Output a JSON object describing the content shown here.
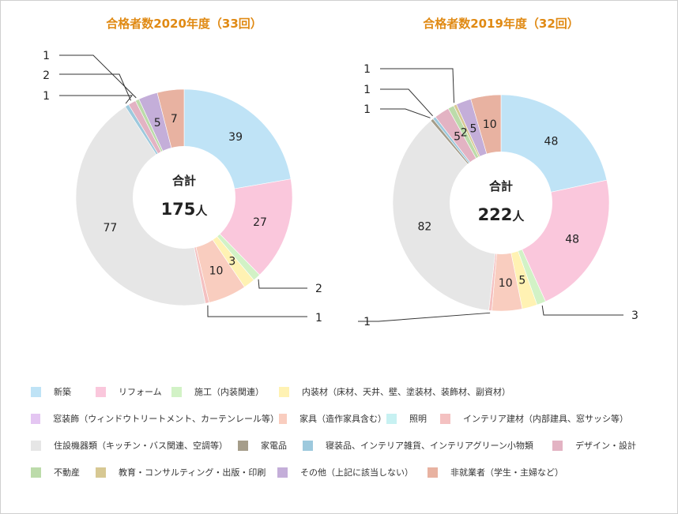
{
  "chart_data": [
    {
      "type": "pie",
      "title": "合格者数2020年度（33回）",
      "center_label": "合計",
      "center_value": "175",
      "center_unit": "人",
      "slices": [
        {
          "category": "新築",
          "value": 39,
          "label": "39"
        },
        {
          "category": "リフォーム",
          "value": 27,
          "label": "27"
        },
        {
          "category": "施工（内装関連）",
          "value": 2,
          "label": "2"
        },
        {
          "category": "内装材（床材、天井、壁、塗装材、装飾材、副資材）",
          "value": 3,
          "label": "3"
        },
        {
          "category": "窓装飾（ウィンドウトリートメント、カーテンレール等）",
          "value": 0
        },
        {
          "category": "家具（造作家具含む）",
          "value": 10,
          "label": "10"
        },
        {
          "category": "照明",
          "value": 0
        },
        {
          "category": "インテリア建材（内部建具、窓サッシ等）",
          "value": 1,
          "label": "1"
        },
        {
          "category": "住設機器類（キッチン・バス関連、空調等）",
          "value": 77,
          "label": "77"
        },
        {
          "category": "家電品",
          "value": 0
        },
        {
          "category": "寝装品、インテリア雑貨、インテリアグリーン小物類",
          "value": 1,
          "label": "1"
        },
        {
          "category": "デザイン・設計",
          "value": 2,
          "label": "2"
        },
        {
          "category": "不動産",
          "value": 1,
          "label": "1"
        },
        {
          "category": "教育・コンサルティング・出版・印刷",
          "value": 0
        },
        {
          "category": "その他（上記に該当しない）",
          "value": 5,
          "label": "5"
        },
        {
          "category": "非就業者（学生・主婦など）",
          "value": 7,
          "label": "7"
        }
      ]
    },
    {
      "type": "pie",
      "title": "合格者数2019年度（32回）",
      "center_label": "合計",
      "center_value": "222",
      "center_unit": "人",
      "slices": [
        {
          "category": "新築",
          "value": 48,
          "label": "48"
        },
        {
          "category": "リフォーム",
          "value": 48,
          "label": "48"
        },
        {
          "category": "施工（内装関連）",
          "value": 3,
          "label": "3"
        },
        {
          "category": "内装材（床材、天井、壁、塗装材、装飾材、副資材）",
          "value": 5,
          "label": "5"
        },
        {
          "category": "窓装飾（ウィンドウトリートメント、カーテンレール等）",
          "value": 0
        },
        {
          "category": "家具（造作家具含む）",
          "value": 10,
          "label": "10"
        },
        {
          "category": "照明",
          "value": 0
        },
        {
          "category": "インテリア建材（内部建具、窓サッシ等）",
          "value": 1,
          "label": "1"
        },
        {
          "category": "住設機器類（キッチン・バス関連、空調等）",
          "value": 82,
          "label": "82"
        },
        {
          "category": "家電品",
          "value": 1,
          "label": "1"
        },
        {
          "category": "寝装品、インテリア雑貨、インテリアグリーン小物類",
          "value": 1,
          "label": "1"
        },
        {
          "category": "デザイン・設計",
          "value": 5,
          "label": "5"
        },
        {
          "category": "不動産",
          "value": 2,
          "label": "2"
        },
        {
          "category": "教育・コンサルティング・出版・印刷",
          "value": 1,
          "label": "1"
        },
        {
          "category": "その他（上記に該当しない）",
          "value": 5,
          "label": "5"
        },
        {
          "category": "非就業者（学生・主婦など）",
          "value": 10,
          "label": "10"
        }
      ]
    }
  ],
  "legend": {
    "rows": [
      [
        {
          "label": "新築",
          "color": "#bfe3f6"
        },
        {
          "label": "リフォーム",
          "color": "#fac7dc"
        },
        {
          "label": "施工（内装関連）",
          "color": "#d2f2c6"
        },
        {
          "label": "内装材（床材、天井、壁、塗装材、装飾材、副資材）",
          "color": "#fff2b3"
        }
      ],
      [
        {
          "label": "窓装飾（ウィンドウトリートメント、カーテンレール等）",
          "color": "#e4c6f2"
        },
        {
          "label": "家具（造作家具含む）",
          "color": "#f9cdbf"
        },
        {
          "label": "照明",
          "color": "#c7f1f2"
        },
        {
          "label": "インテリア建材（内部建具、窓サッシ等）",
          "color": "#f4c1c1"
        }
      ],
      [
        {
          "label": "住設機器類（キッチン・バス関連、空調等）",
          "color": "#e6e6e6"
        },
        {
          "label": "家電品",
          "color": "#a59d8a"
        },
        {
          "label": "寝装品、インテリア雑貨、インテリアグリーン小物類",
          "color": "#9dc9dd"
        },
        {
          "label": "デザイン・設計",
          "color": "#e3b3c3"
        }
      ],
      [
        {
          "label": "不動産",
          "color": "#bcdbaa"
        },
        {
          "label": "教育・コンサルティング・出版・印刷",
          "color": "#d7c893"
        },
        {
          "label": "その他（上記に該当しない）",
          "color": "#c4aed9"
        },
        {
          "label": "非就業者（学生・主婦など）",
          "color": "#e8b2a1"
        }
      ]
    ]
  },
  "colors": {
    "title": "#e08a14",
    "label_text": "#222222",
    "leader_line": "#333333",
    "hole": "#ffffff"
  }
}
